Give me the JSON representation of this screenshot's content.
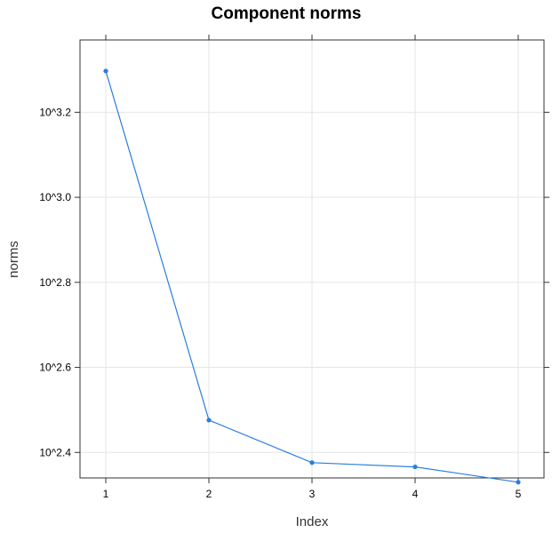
{
  "chart_data": {
    "type": "line",
    "title": "Component norms",
    "xlabel": "Index",
    "ylabel": "norms",
    "x": [
      1,
      2,
      3,
      4,
      5
    ],
    "x_tick_labels": [
      "1",
      "2",
      "3",
      "4",
      "5"
    ],
    "xlim": [
      0.75,
      5.25
    ],
    "y_scale": "log10",
    "y_tick_values": [
      2.4,
      2.6,
      2.8,
      3.0,
      3.2
    ],
    "y_tick_labels": [
      "10^2.4",
      "10^2.6",
      "10^2.8",
      "10^3.0",
      "10^3.2"
    ],
    "ylim": [
      2.34,
      3.37
    ],
    "grid": true,
    "series": [
      {
        "values_log10": [
          3.297,
          2.476,
          2.376,
          2.366,
          2.33
        ],
        "color": "#2a7de1"
      }
    ]
  }
}
